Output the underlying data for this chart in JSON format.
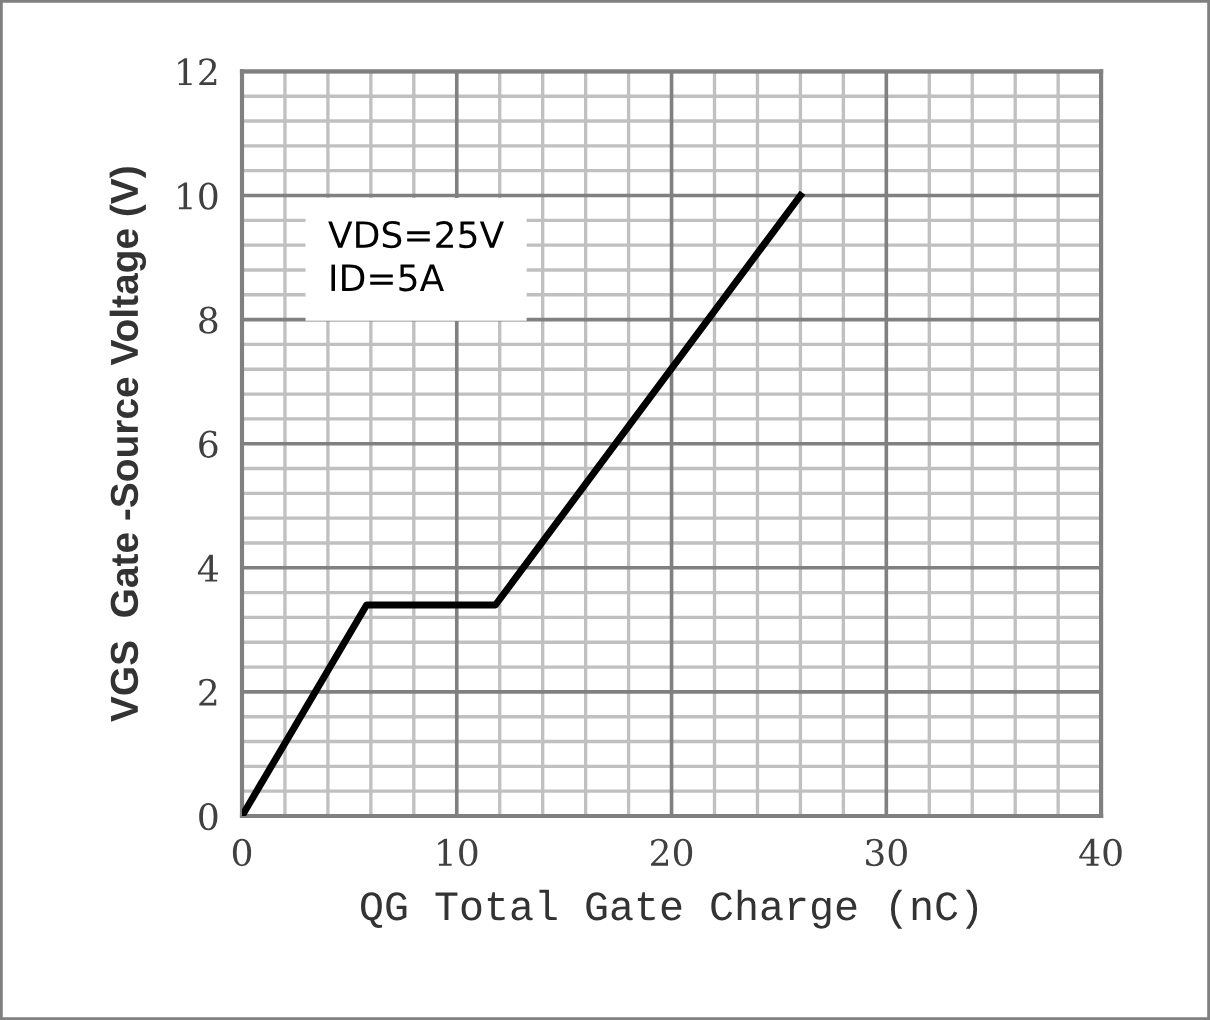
{
  "chart_data": {
    "type": "line",
    "xlabel": "QG Total Gate Charge (nC)",
    "ylabel": "VGS  Gate -Source Voltage (V)",
    "x": [
      0,
      5.8,
      11.8,
      26
    ],
    "series": [
      {
        "color": "#000000",
        "values": [
          0,
          3.4,
          3.4,
          10
        ]
      }
    ],
    "xlim": [
      0,
      40
    ],
    "xticks": [
      0,
      10,
      20,
      30,
      40
    ],
    "ylim": [
      0,
      12
    ],
    "yticks": [
      0,
      2,
      4,
      6,
      8,
      10,
      12
    ],
    "grid": true,
    "line_style": "solid",
    "annotations": [
      "VDS=25V\nID=5A"
    ]
  }
}
